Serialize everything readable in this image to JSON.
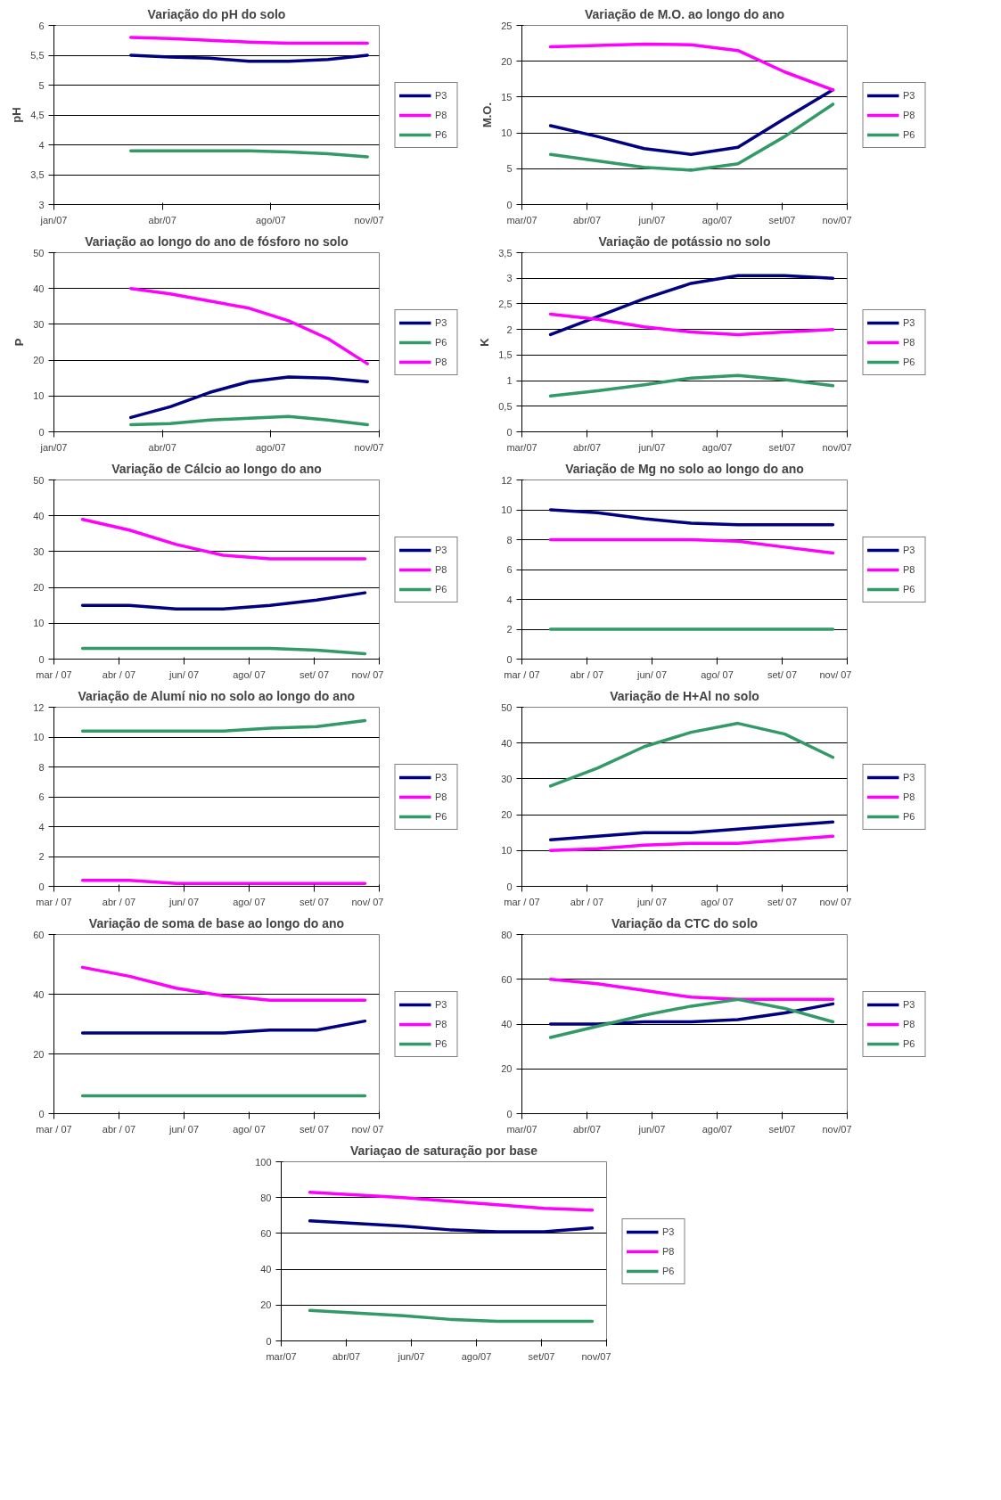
{
  "chart_data": [
    {
      "type": "line",
      "title": "Variação do pH do solo",
      "ylabel": "pH",
      "x": [
        "2007-03-20",
        "2007-04-29",
        "2007-06-08",
        "2007-07-18",
        "2007-08-27",
        "2007-10-06",
        "2007-11-15"
      ],
      "xlim": [
        "2007-01-01",
        "2007-11-27"
      ],
      "xticks": [
        {
          "value": "2007-01-01",
          "label": "jan/07"
        },
        {
          "value": "2007-04-21",
          "label": "abr/07"
        },
        {
          "value": "2007-08-09",
          "label": "ago/07"
        },
        {
          "value": "2007-11-27",
          "label": "nov/07"
        }
      ],
      "ylim": [
        3,
        6
      ],
      "yticks": [
        3,
        {
          "value": 3.5,
          "label": "3,5"
        },
        4,
        {
          "value": 4.5,
          "label": "4,5"
        },
        5,
        {
          "value": 5.5,
          "label": "5,5"
        },
        6
      ],
      "grid": "y",
      "legend": "right",
      "series": [
        {
          "name": "P3",
          "color": "#000080",
          "values": [
            5.5,
            5.47,
            5.45,
            5.4,
            5.4,
            5.43,
            5.5
          ]
        },
        {
          "name": "P8",
          "color": "#ff00ff",
          "values": [
            5.8,
            5.78,
            5.75,
            5.72,
            5.7,
            5.7,
            5.7
          ]
        },
        {
          "name": "P6",
          "color": "#339966",
          "values": [
            3.9,
            3.9,
            3.9,
            3.9,
            3.88,
            3.85,
            3.8
          ]
        }
      ]
    },
    {
      "type": "line",
      "title": "Variação de M.O. ao longo do ano",
      "ylabel": "M.O.",
      "x": [
        "2007-04-01",
        "2007-05-07",
        "2007-06-12",
        "2007-07-18",
        "2007-08-23",
        "2007-09-28",
        "2007-11-04"
      ],
      "xlim": [
        "2007-03-10",
        "2007-11-15"
      ],
      "xticks": [
        {
          "value": "2007-03-10",
          "label": "mar/07"
        },
        {
          "value": "2007-04-29",
          "label": "abr/07"
        },
        {
          "value": "2007-06-18",
          "label": "jun/07"
        },
        {
          "value": "2007-08-07",
          "label": "ago/07"
        },
        {
          "value": "2007-09-26",
          "label": "set/07"
        },
        {
          "value": "2007-11-15",
          "label": "nov/07"
        }
      ],
      "ylim": [
        0,
        25
      ],
      "yticks": [
        0,
        5,
        10,
        15,
        20,
        25
      ],
      "grid": "y",
      "legend": "right",
      "series": [
        {
          "name": "P3",
          "color": "#000080",
          "values": [
            11,
            9.5,
            7.8,
            7,
            8,
            12,
            16
          ]
        },
        {
          "name": "P8",
          "color": "#ff00ff",
          "values": [
            22,
            22.2,
            22.4,
            22.3,
            21.5,
            18.5,
            16
          ]
        },
        {
          "name": "P6",
          "color": "#339966",
          "values": [
            7,
            6.1,
            5.2,
            4.8,
            5.7,
            9.5,
            14
          ]
        }
      ]
    },
    {
      "type": "line",
      "title": "Variação ao longo do ano de fósforo no solo",
      "ylabel": "P",
      "x": [
        "2007-03-20",
        "2007-04-29",
        "2007-06-08",
        "2007-07-18",
        "2007-08-27",
        "2007-10-06",
        "2007-11-15"
      ],
      "xlim": [
        "2007-01-01",
        "2007-11-27"
      ],
      "xticks": [
        {
          "value": "2007-01-01",
          "label": "jan/07"
        },
        {
          "value": "2007-04-21",
          "label": "abr/07"
        },
        {
          "value": "2007-08-09",
          "label": "ago/07"
        },
        {
          "value": "2007-11-27",
          "label": "nov/07"
        }
      ],
      "ylim": [
        0,
        50
      ],
      "yticks": [
        0,
        10,
        20,
        30,
        40,
        50
      ],
      "grid": "y",
      "legend": "right",
      "series": [
        {
          "name": "P3",
          "color": "#000080",
          "values": [
            4,
            7,
            11,
            14,
            15.3,
            15,
            14
          ]
        },
        {
          "name": "P6",
          "color": "#339966",
          "values": [
            2,
            2.3,
            3.3,
            3.8,
            4.3,
            3.3,
            2
          ]
        },
        {
          "name": "P8",
          "color": "#ff00ff",
          "values": [
            40,
            38.5,
            36.5,
            34.5,
            31,
            26,
            19
          ]
        }
      ]
    },
    {
      "type": "line",
      "title": "Variação de potássio no solo",
      "ylabel": "K",
      "x": [
        "2007-04-01",
        "2007-05-07",
        "2007-06-12",
        "2007-07-18",
        "2007-08-23",
        "2007-09-28",
        "2007-11-04"
      ],
      "xlim": [
        "2007-03-10",
        "2007-11-15"
      ],
      "xticks": [
        {
          "value": "2007-03-10",
          "label": "mar/07"
        },
        {
          "value": "2007-04-29",
          "label": "abr/07"
        },
        {
          "value": "2007-06-18",
          "label": "jun/07"
        },
        {
          "value": "2007-08-07",
          "label": "ago/07"
        },
        {
          "value": "2007-09-26",
          "label": "set/07"
        },
        {
          "value": "2007-11-15",
          "label": "nov/07"
        }
      ],
      "ylim": [
        0,
        3.5
      ],
      "yticks": [
        0,
        {
          "value": 0.5,
          "label": "0,5"
        },
        1,
        {
          "value": 1.5,
          "label": "1,5"
        },
        2,
        {
          "value": 2.5,
          "label": "2,5"
        },
        3,
        {
          "value": 3.5,
          "label": "3,5"
        }
      ],
      "grid": "y",
      "legend": "right",
      "series": [
        {
          "name": "P3",
          "color": "#000080",
          "values": [
            1.9,
            2.25,
            2.6,
            2.9,
            3.05,
            3.05,
            3.0
          ]
        },
        {
          "name": "P8",
          "color": "#ff00ff",
          "values": [
            2.3,
            2.2,
            2.05,
            1.95,
            1.9,
            1.95,
            2.0
          ]
        },
        {
          "name": "P6",
          "color": "#339966",
          "values": [
            0.7,
            0.8,
            0.92,
            1.05,
            1.1,
            1.02,
            0.9
          ]
        }
      ]
    },
    {
      "type": "line",
      "title": "Variação de Cálcio ao longo do ano",
      "x": [
        "2007-04-01",
        "2007-05-07",
        "2007-06-12",
        "2007-07-18",
        "2007-08-23",
        "2007-09-28",
        "2007-11-04"
      ],
      "xlim": [
        "2007-03-10",
        "2007-11-15"
      ],
      "xticks": [
        {
          "value": "2007-03-10",
          "label": "mar / 07"
        },
        {
          "value": "2007-04-29",
          "label": "abr / 07"
        },
        {
          "value": "2007-06-18",
          "label": "jun/ 07"
        },
        {
          "value": "2007-08-07",
          "label": "ago/ 07"
        },
        {
          "value": "2007-09-26",
          "label": "set/ 07"
        },
        {
          "value": "2007-11-15",
          "label": "nov/ 07"
        }
      ],
      "ylim": [
        0,
        50
      ],
      "yticks": [
        0,
        10,
        20,
        30,
        40,
        50
      ],
      "grid": "y",
      "legend": "right",
      "series": [
        {
          "name": "P3",
          "color": "#000080",
          "values": [
            15,
            15,
            14,
            14,
            15,
            16.5,
            18.5
          ]
        },
        {
          "name": "P8",
          "color": "#ff00ff",
          "values": [
            39,
            36,
            32,
            29,
            28,
            28,
            28
          ]
        },
        {
          "name": "P6",
          "color": "#339966",
          "values": [
            3,
            3,
            3,
            3,
            3,
            2.5,
            1.5
          ]
        }
      ]
    },
    {
      "type": "line",
      "title": "Variação de Mg no solo ao longo do ano",
      "x": [
        "2007-04-01",
        "2007-05-07",
        "2007-06-12",
        "2007-07-18",
        "2007-08-23",
        "2007-09-28",
        "2007-11-04"
      ],
      "xlim": [
        "2007-03-10",
        "2007-11-15"
      ],
      "xticks": [
        {
          "value": "2007-03-10",
          "label": "mar / 07"
        },
        {
          "value": "2007-04-29",
          "label": "abr / 07"
        },
        {
          "value": "2007-06-18",
          "label": "jun/ 07"
        },
        {
          "value": "2007-08-07",
          "label": "ago/ 07"
        },
        {
          "value": "2007-09-26",
          "label": "set/ 07"
        },
        {
          "value": "2007-11-15",
          "label": "nov/ 07"
        }
      ],
      "ylim": [
        0,
        12
      ],
      "yticks": [
        0,
        2,
        4,
        6,
        8,
        10,
        12
      ],
      "grid": "y",
      "legend": "right",
      "series": [
        {
          "name": "P3",
          "color": "#000080",
          "values": [
            10,
            9.8,
            9.4,
            9.1,
            9,
            9,
            9
          ]
        },
        {
          "name": "P8",
          "color": "#ff00ff",
          "values": [
            8,
            8,
            8,
            8,
            7.9,
            7.5,
            7.1
          ]
        },
        {
          "name": "P6",
          "color": "#339966",
          "values": [
            2,
            2,
            2,
            2,
            2,
            2,
            2
          ]
        }
      ]
    },
    {
      "type": "line",
      "title": "Variação de Alumí nio no solo ao longo do ano",
      "x": [
        "2007-04-01",
        "2007-05-07",
        "2007-06-12",
        "2007-07-18",
        "2007-08-23",
        "2007-09-28",
        "2007-11-04"
      ],
      "xlim": [
        "2007-03-10",
        "2007-11-15"
      ],
      "xticks": [
        {
          "value": "2007-03-10",
          "label": "mar / 07"
        },
        {
          "value": "2007-04-29",
          "label": "abr / 07"
        },
        {
          "value": "2007-06-18",
          "label": "jun/ 07"
        },
        {
          "value": "2007-08-07",
          "label": "ago/ 07"
        },
        {
          "value": "2007-09-26",
          "label": "set/ 07"
        },
        {
          "value": "2007-11-15",
          "label": "nov/ 07"
        }
      ],
      "ylim": [
        0,
        12
      ],
      "yticks": [
        0,
        2,
        4,
        6,
        8,
        10,
        12
      ],
      "grid": "y",
      "legend": "right",
      "series": [
        {
          "name": "P3",
          "color": "#000080",
          "values": [
            null,
            null,
            null,
            null,
            null,
            null,
            null
          ]
        },
        {
          "name": "P8",
          "color": "#ff00ff",
          "values": [
            0.4,
            0.4,
            0.2,
            0.2,
            0.2,
            0.2,
            0.2
          ]
        },
        {
          "name": "P6",
          "color": "#339966",
          "values": [
            10.4,
            10.4,
            10.4,
            10.4,
            10.6,
            10.7,
            11.1
          ]
        }
      ]
    },
    {
      "type": "line",
      "title": "Variação de H+Al no solo",
      "x": [
        "2007-04-01",
        "2007-05-07",
        "2007-06-12",
        "2007-07-18",
        "2007-08-23",
        "2007-09-28",
        "2007-11-04"
      ],
      "xlim": [
        "2007-03-10",
        "2007-11-15"
      ],
      "xticks": [
        {
          "value": "2007-03-10",
          "label": "mar / 07"
        },
        {
          "value": "2007-04-29",
          "label": "abr / 07"
        },
        {
          "value": "2007-06-18",
          "label": "jun/ 07"
        },
        {
          "value": "2007-08-07",
          "label": "ago/ 07"
        },
        {
          "value": "2007-09-26",
          "label": "set/ 07"
        },
        {
          "value": "2007-11-15",
          "label": "nov/ 07"
        }
      ],
      "ylim": [
        0,
        50
      ],
      "yticks": [
        0,
        10,
        20,
        30,
        40,
        50
      ],
      "grid": "y",
      "legend": "right",
      "series": [
        {
          "name": "P3",
          "color": "#000080",
          "values": [
            13,
            14,
            15,
            15,
            16,
            17,
            18
          ]
        },
        {
          "name": "P8",
          "color": "#ff00ff",
          "values": [
            10,
            10.5,
            11.5,
            12,
            12,
            13,
            14
          ]
        },
        {
          "name": "P6",
          "color": "#339966",
          "values": [
            28,
            33,
            39,
            43,
            45.5,
            42.5,
            36
          ]
        }
      ]
    },
    {
      "type": "line",
      "title": "Variação de soma de base ao longo do ano",
      "x": [
        "2007-04-01",
        "2007-05-07",
        "2007-06-12",
        "2007-07-18",
        "2007-08-23",
        "2007-09-28",
        "2007-11-04"
      ],
      "xlim": [
        "2007-03-10",
        "2007-11-15"
      ],
      "xticks": [
        {
          "value": "2007-03-10",
          "label": "mar / 07"
        },
        {
          "value": "2007-04-29",
          "label": "abr / 07"
        },
        {
          "value": "2007-06-18",
          "label": "jun/ 07"
        },
        {
          "value": "2007-08-07",
          "label": "ago/ 07"
        },
        {
          "value": "2007-09-26",
          "label": "set/ 07"
        },
        {
          "value": "2007-11-15",
          "label": "nov/ 07"
        }
      ],
      "ylim": [
        0,
        60
      ],
      "yticks": [
        0,
        20,
        40,
        60
      ],
      "grid": "y",
      "legend": "right",
      "series": [
        {
          "name": "P3",
          "color": "#000080",
          "values": [
            27,
            27,
            27,
            27,
            28,
            28,
            31
          ]
        },
        {
          "name": "P8",
          "color": "#ff00ff",
          "values": [
            49,
            46,
            42,
            39.5,
            38,
            38,
            38
          ]
        },
        {
          "name": "P6",
          "color": "#339966",
          "values": [
            6,
            6,
            6,
            6,
            6,
            6,
            6
          ]
        }
      ]
    },
    {
      "type": "line",
      "title": "Variação da CTC do solo",
      "x": [
        "2007-04-01",
        "2007-05-07",
        "2007-06-12",
        "2007-07-18",
        "2007-08-23",
        "2007-09-28",
        "2007-11-04"
      ],
      "xlim": [
        "2007-03-10",
        "2007-11-15"
      ],
      "xticks": [
        {
          "value": "2007-03-10",
          "label": "mar/07"
        },
        {
          "value": "2007-04-29",
          "label": "abr/07"
        },
        {
          "value": "2007-06-18",
          "label": "jun/07"
        },
        {
          "value": "2007-08-07",
          "label": "ago/07"
        },
        {
          "value": "2007-09-26",
          "label": "set/07"
        },
        {
          "value": "2007-11-15",
          "label": "nov/07"
        }
      ],
      "ylim": [
        0,
        80
      ],
      "yticks": [
        0,
        20,
        40,
        60,
        80
      ],
      "grid": "y",
      "legend": "right",
      "series": [
        {
          "name": "P3",
          "color": "#000080",
          "values": [
            40,
            40,
            41,
            41,
            42,
            45,
            49
          ]
        },
        {
          "name": "P8",
          "color": "#ff00ff",
          "values": [
            60,
            58,
            55,
            52,
            51,
            51,
            51
          ]
        },
        {
          "name": "P6",
          "color": "#339966",
          "values": [
            34,
            39,
            44,
            48,
            51,
            47,
            41
          ]
        }
      ]
    },
    {
      "type": "line",
      "title": "Variaçao de saturação por base",
      "x": [
        "2007-04-01",
        "2007-05-07",
        "2007-06-12",
        "2007-07-18",
        "2007-08-23",
        "2007-09-28",
        "2007-11-04"
      ],
      "xlim": [
        "2007-03-10",
        "2007-11-15"
      ],
      "xticks": [
        {
          "value": "2007-03-10",
          "label": "mar/07"
        },
        {
          "value": "2007-04-29",
          "label": "abr/07"
        },
        {
          "value": "2007-06-18",
          "label": "jun/07"
        },
        {
          "value": "2007-08-07",
          "label": "ago/07"
        },
        {
          "value": "2007-09-26",
          "label": "set/07"
        },
        {
          "value": "2007-11-15",
          "label": "nov/07"
        }
      ],
      "ylim": [
        0,
        100
      ],
      "yticks": [
        0,
        20,
        40,
        60,
        80,
        100
      ],
      "grid": "y",
      "legend": "right",
      "series": [
        {
          "name": "P3",
          "color": "#000080",
          "values": [
            67,
            65.5,
            64,
            62,
            61,
            61,
            63
          ]
        },
        {
          "name": "P8",
          "color": "#ff00ff",
          "values": [
            83,
            81.5,
            80,
            78,
            76,
            74,
            73
          ]
        },
        {
          "name": "P6",
          "color": "#339966",
          "values": [
            17,
            15.5,
            14,
            12,
            11,
            11,
            11
          ]
        }
      ]
    }
  ]
}
